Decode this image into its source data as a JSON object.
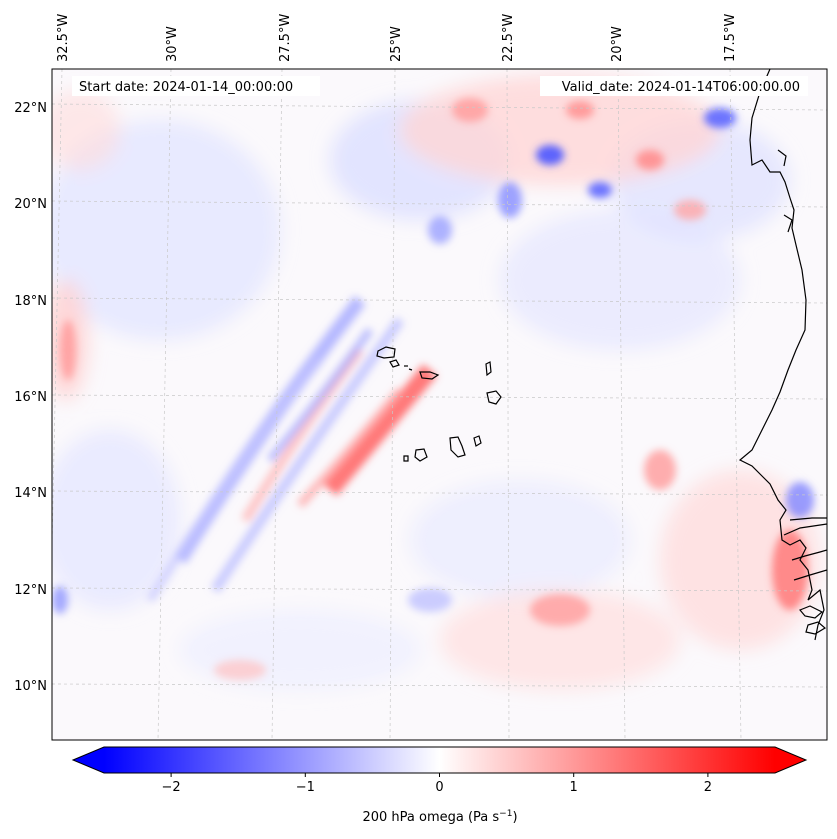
{
  "map": {
    "start_label": "Start date: 2024-01-14_00:00:00",
    "valid_label": "Valid_date: 2024-01-14T06:00:00.00",
    "lon_labels": [
      "32.5°W",
      "30°W",
      "27.5°W",
      "25°W",
      "22.5°W",
      "20°W",
      "17.5°W"
    ],
    "lat_labels": [
      "22°N",
      "20°N",
      "18°N",
      "16°N",
      "14°N",
      "12°N",
      "10°N"
    ],
    "field_colors": {
      "negative": "#0000ff",
      "zero": "#ffffff",
      "positive": "#ff0000"
    }
  },
  "colorbar": {
    "label_main": "200 hPa omega (Pa s",
    "label_exp": "−1",
    "label_close": ")",
    "ticks": [
      "−2",
      "−1",
      "0",
      "1",
      "2"
    ],
    "tick_values": [
      -2,
      -1,
      0,
      1,
      2
    ],
    "vmin": -2.5,
    "vmax": 2.5
  }
}
